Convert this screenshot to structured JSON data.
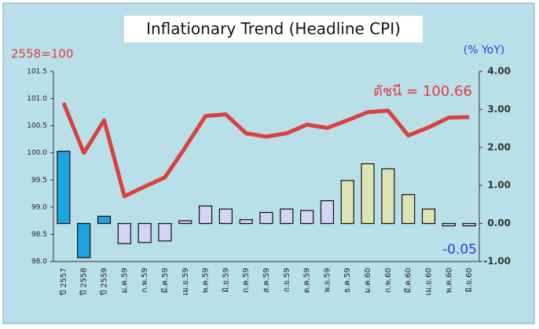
{
  "chart_data": {
    "type": "bar_line",
    "title": "Inflationary Trend (Headline CPI)",
    "y_label": "2558=100",
    "y2_label": "(% YoY)",
    "annotations": [
      "ดัชนี = 100.66",
      "-0.05"
    ],
    "categories": [
      "ปี 2557",
      "ปี 2558",
      "ปี 2559",
      "ม.ค.59",
      "ก.พ.59",
      "มี.ค.59",
      "เม.ย.59",
      "พ.ค.59",
      "มิ.ย.59",
      "ก.ค.59",
      "ส.ค.59",
      "ก.ย.59",
      "ต.ค.59",
      "พ.ย.59",
      "ธ.ค.59",
      "ม.ค.60",
      "ก.พ.60",
      "มี.ค.60",
      "เม.ย.60",
      "พ.ค.60",
      "มิ.ย.60"
    ],
    "series": [
      {
        "type": "line",
        "color": "#d9413f",
        "values": [
          100.92,
          100.0,
          100.6,
          99.2,
          99.38,
          99.55,
          100.1,
          100.68,
          100.71,
          100.36,
          100.3,
          100.36,
          100.52,
          100.46,
          100.6,
          100.75,
          100.78,
          100.32,
          100.47,
          100.65,
          100.66
        ]
      },
      {
        "type": "bar",
        "axis": "y2",
        "colors": [
          "#1ca4e0",
          "#1ca4e0",
          "#1ca4e0",
          "#d4d4f4",
          "#d4d4f4",
          "#d4d4f4",
          "#d4d4f4",
          "#d4d4f4",
          "#d4d4f4",
          "#d4d4f4",
          "#d4d4f4",
          "#d4d4f4",
          "#d4d4f4",
          "#d4d4f4",
          "#dce3b4",
          "#dce3b4",
          "#dce3b4",
          "#dce3b4",
          "#dce3b4",
          "#d4d4f4",
          "#d4d4f4"
        ],
        "values": [
          1.9,
          -0.9,
          0.19,
          -0.53,
          -0.5,
          -0.46,
          0.07,
          0.46,
          0.38,
          0.1,
          0.29,
          0.38,
          0.34,
          0.6,
          1.13,
          1.57,
          1.44,
          0.76,
          0.38,
          -0.04,
          -0.05
        ]
      }
    ],
    "ylim": [
      98.0,
      101.5
    ],
    "yticks": [
      {
        "value": 98.0,
        "label": "98.0"
      },
      {
        "value": 98.5,
        "label": "98.5"
      },
      {
        "value": 99.0,
        "label": "99.0"
      },
      {
        "value": 99.5,
        "label": "99.5"
      },
      {
        "value": 100.0,
        "label": "100.0"
      },
      {
        "value": 100.5,
        "label": "100.5"
      },
      {
        "value": 101.0,
        "label": "101.0"
      },
      {
        "value": 101.5,
        "label": "101.5"
      }
    ],
    "y2lim": [
      -1.0,
      4.0
    ],
    "y2ticks": [
      {
        "value": -1.0,
        "label": "-1.00"
      },
      {
        "value": 0,
        "label": "0.00"
      },
      {
        "value": 1.0,
        "label": "1.00"
      },
      {
        "value": 2.0,
        "label": "2.00"
      },
      {
        "value": 3.0,
        "label": "3.00"
      },
      {
        "value": 4.0,
        "label": "4.00"
      }
    ]
  }
}
